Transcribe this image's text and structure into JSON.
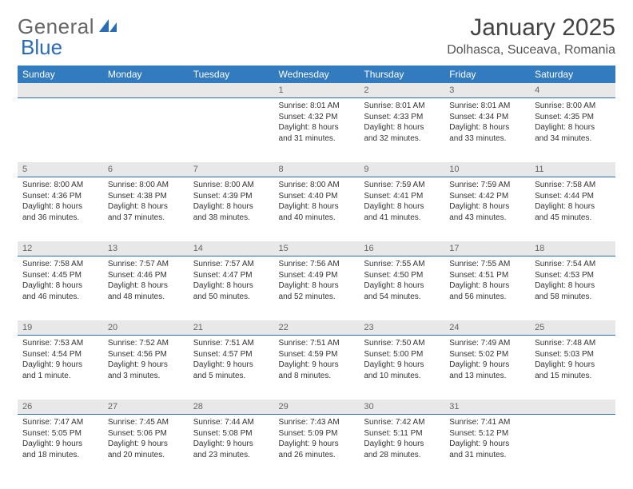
{
  "logo": {
    "t1": "General",
    "t2": "Blue",
    "sail_fill": "#2a6db6"
  },
  "title": "January 2025",
  "subtitle": "Dolhasca, Suceava, Romania",
  "colors": {
    "header_bg": "#327bbf",
    "header_fg": "#ffffff",
    "dayrow_bg": "#e8e8e8",
    "dayrow_border": "#2a6db6",
    "text": "#333333"
  },
  "day_headers": [
    "Sunday",
    "Monday",
    "Tuesday",
    "Wednesday",
    "Thursday",
    "Friday",
    "Saturday"
  ],
  "weeks": [
    [
      null,
      null,
      null,
      {
        "n": "1",
        "sr": "8:01 AM",
        "ss": "4:32 PM",
        "dl": "8 hours and 31 minutes."
      },
      {
        "n": "2",
        "sr": "8:01 AM",
        "ss": "4:33 PM",
        "dl": "8 hours and 32 minutes."
      },
      {
        "n": "3",
        "sr": "8:01 AM",
        "ss": "4:34 PM",
        "dl": "8 hours and 33 minutes."
      },
      {
        "n": "4",
        "sr": "8:00 AM",
        "ss": "4:35 PM",
        "dl": "8 hours and 34 minutes."
      }
    ],
    [
      {
        "n": "5",
        "sr": "8:00 AM",
        "ss": "4:36 PM",
        "dl": "8 hours and 36 minutes."
      },
      {
        "n": "6",
        "sr": "8:00 AM",
        "ss": "4:38 PM",
        "dl": "8 hours and 37 minutes."
      },
      {
        "n": "7",
        "sr": "8:00 AM",
        "ss": "4:39 PM",
        "dl": "8 hours and 38 minutes."
      },
      {
        "n": "8",
        "sr": "8:00 AM",
        "ss": "4:40 PM",
        "dl": "8 hours and 40 minutes."
      },
      {
        "n": "9",
        "sr": "7:59 AM",
        "ss": "4:41 PM",
        "dl": "8 hours and 41 minutes."
      },
      {
        "n": "10",
        "sr": "7:59 AM",
        "ss": "4:42 PM",
        "dl": "8 hours and 43 minutes."
      },
      {
        "n": "11",
        "sr": "7:58 AM",
        "ss": "4:44 PM",
        "dl": "8 hours and 45 minutes."
      }
    ],
    [
      {
        "n": "12",
        "sr": "7:58 AM",
        "ss": "4:45 PM",
        "dl": "8 hours and 46 minutes."
      },
      {
        "n": "13",
        "sr": "7:57 AM",
        "ss": "4:46 PM",
        "dl": "8 hours and 48 minutes."
      },
      {
        "n": "14",
        "sr": "7:57 AM",
        "ss": "4:47 PM",
        "dl": "8 hours and 50 minutes."
      },
      {
        "n": "15",
        "sr": "7:56 AM",
        "ss": "4:49 PM",
        "dl": "8 hours and 52 minutes."
      },
      {
        "n": "16",
        "sr": "7:55 AM",
        "ss": "4:50 PM",
        "dl": "8 hours and 54 minutes."
      },
      {
        "n": "17",
        "sr": "7:55 AM",
        "ss": "4:51 PM",
        "dl": "8 hours and 56 minutes."
      },
      {
        "n": "18",
        "sr": "7:54 AM",
        "ss": "4:53 PM",
        "dl": "8 hours and 58 minutes."
      }
    ],
    [
      {
        "n": "19",
        "sr": "7:53 AM",
        "ss": "4:54 PM",
        "dl": "9 hours and 1 minute."
      },
      {
        "n": "20",
        "sr": "7:52 AM",
        "ss": "4:56 PM",
        "dl": "9 hours and 3 minutes."
      },
      {
        "n": "21",
        "sr": "7:51 AM",
        "ss": "4:57 PM",
        "dl": "9 hours and 5 minutes."
      },
      {
        "n": "22",
        "sr": "7:51 AM",
        "ss": "4:59 PM",
        "dl": "9 hours and 8 minutes."
      },
      {
        "n": "23",
        "sr": "7:50 AM",
        "ss": "5:00 PM",
        "dl": "9 hours and 10 minutes."
      },
      {
        "n": "24",
        "sr": "7:49 AM",
        "ss": "5:02 PM",
        "dl": "9 hours and 13 minutes."
      },
      {
        "n": "25",
        "sr": "7:48 AM",
        "ss": "5:03 PM",
        "dl": "9 hours and 15 minutes."
      }
    ],
    [
      {
        "n": "26",
        "sr": "7:47 AM",
        "ss": "5:05 PM",
        "dl": "9 hours and 18 minutes."
      },
      {
        "n": "27",
        "sr": "7:45 AM",
        "ss": "5:06 PM",
        "dl": "9 hours and 20 minutes."
      },
      {
        "n": "28",
        "sr": "7:44 AM",
        "ss": "5:08 PM",
        "dl": "9 hours and 23 minutes."
      },
      {
        "n": "29",
        "sr": "7:43 AM",
        "ss": "5:09 PM",
        "dl": "9 hours and 26 minutes."
      },
      {
        "n": "30",
        "sr": "7:42 AM",
        "ss": "5:11 PM",
        "dl": "9 hours and 28 minutes."
      },
      {
        "n": "31",
        "sr": "7:41 AM",
        "ss": "5:12 PM",
        "dl": "9 hours and 31 minutes."
      },
      null
    ]
  ],
  "labels": {
    "sunrise": "Sunrise:",
    "sunset": "Sunset:",
    "daylight": "Daylight:"
  }
}
